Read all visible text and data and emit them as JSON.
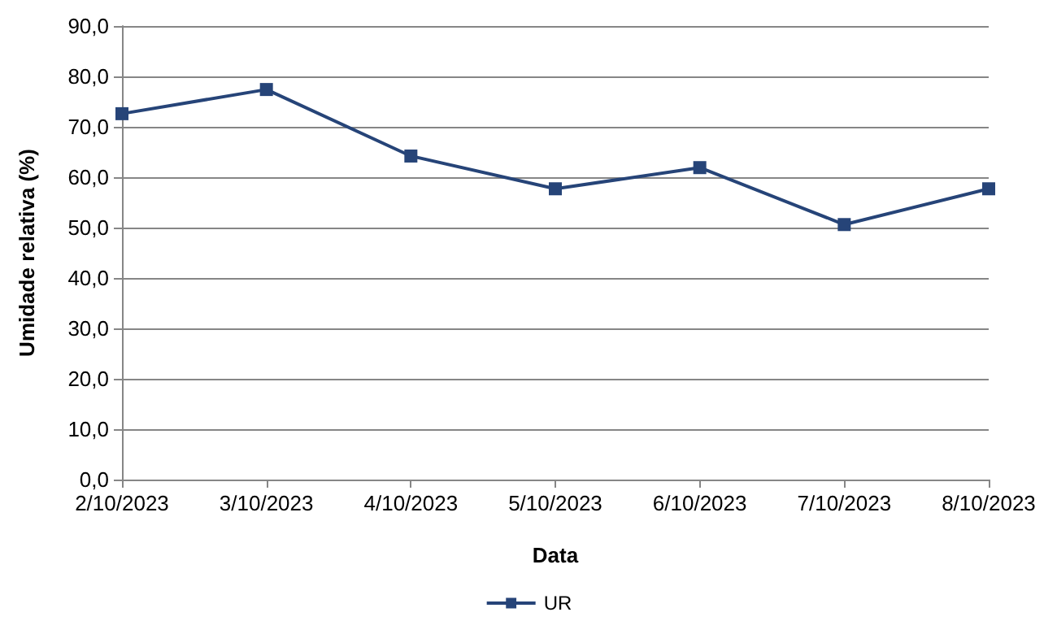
{
  "chart_data": {
    "type": "line",
    "xlabel": "Data",
    "ylabel": "Umidade relativa (%)",
    "categories": [
      "2/10/2023",
      "3/10/2023",
      "4/10/2023",
      "5/10/2023",
      "6/10/2023",
      "7/10/2023",
      "8/10/2023"
    ],
    "series": [
      {
        "name": "UR",
        "color": "#264478",
        "values": [
          72.6,
          77.4,
          64.2,
          57.7,
          61.9,
          50.6,
          57.7
        ]
      }
    ],
    "ylim": [
      0,
      90
    ],
    "yticks": [
      {
        "value": 0,
        "label": "0,0"
      },
      {
        "value": 10,
        "label": "10,0"
      },
      {
        "value": 20,
        "label": "20,0"
      },
      {
        "value": 30,
        "label": "30,0"
      },
      {
        "value": 40,
        "label": "40,0"
      },
      {
        "value": 50,
        "label": "50,0"
      },
      {
        "value": 60,
        "label": "60,0"
      },
      {
        "value": 70,
        "label": "70,0"
      },
      {
        "value": 80,
        "label": "80,0"
      },
      {
        "value": 90,
        "label": "90,0"
      }
    ],
    "grid": "y",
    "legend": "bottom",
    "marker": "square",
    "line_style": "solid"
  }
}
